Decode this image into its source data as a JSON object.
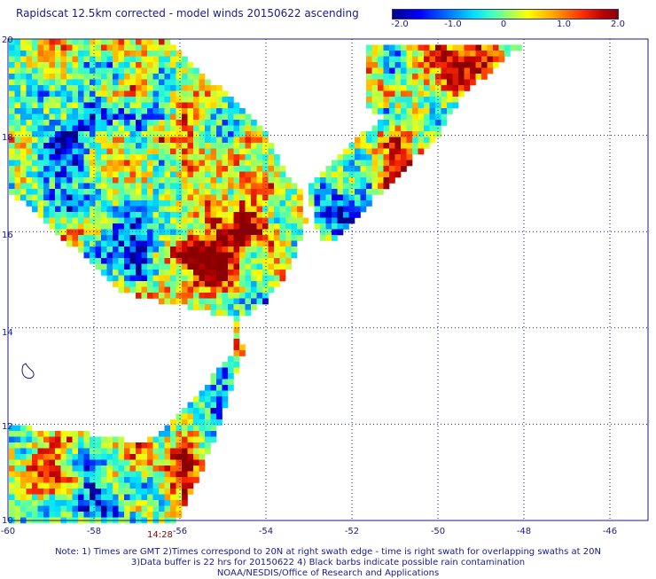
{
  "title": "Rapidscat 12.5km corrected - model winds 20150622 ascending",
  "colorbar": {
    "ticks": [
      "-2.0",
      "-1.0",
      "0",
      "1.0",
      "2.0"
    ],
    "colors": [
      "#00008b",
      "#0000ff",
      "#0080ff",
      "#00e0ff",
      "#40ffc0",
      "#a0ff60",
      "#ffff00",
      "#ffa000",
      "#ff3000",
      "#c00000",
      "#8b0000"
    ]
  },
  "axes": {
    "x_ticks": [
      "-60",
      "-58",
      "-56",
      "-54",
      "-52",
      "-50",
      "-48",
      "-46"
    ],
    "y_ticks": [
      "20",
      "18",
      "16",
      "14",
      "12",
      "10"
    ]
  },
  "time_label": "14:28",
  "notes": [
    "Note: 1) Times are GMT 2)Times correspond to 20N at right swath edge - time is right swath for overlapping swaths at 20N",
    "3)Data buffer is 22 hrs for 20150622 4) Black barbs indicate possible rain contamination",
    "NOAA/NESDIS/Office of Research and Applications"
  ]
}
